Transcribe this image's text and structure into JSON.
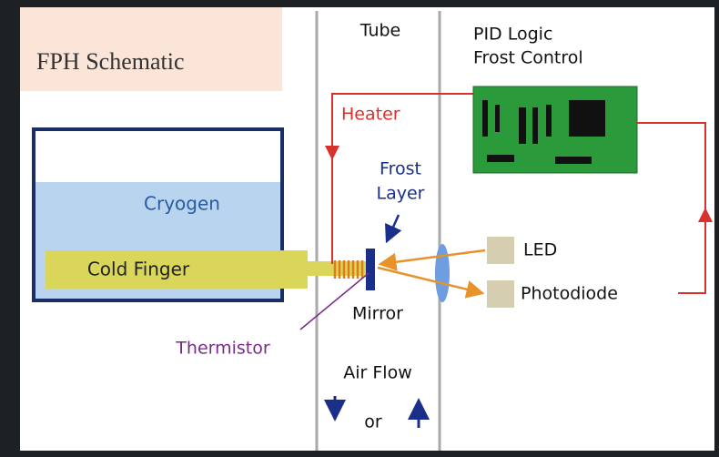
{
  "title": "FPH Schematic",
  "labels": {
    "tube": "Tube",
    "pid_line1": "PID Logic",
    "pid_line2": "Frost Control",
    "heater": "Heater",
    "cryogen": "Cryogen",
    "cold_finger": "Cold Finger",
    "frost_line1": "Frost",
    "frost_line2": "Layer",
    "led": "LED",
    "photodiode": "Photodiode",
    "mirror": "Mirror",
    "thermistor": "Thermistor",
    "air_flow": "Air Flow",
    "or": "or"
  }
}
